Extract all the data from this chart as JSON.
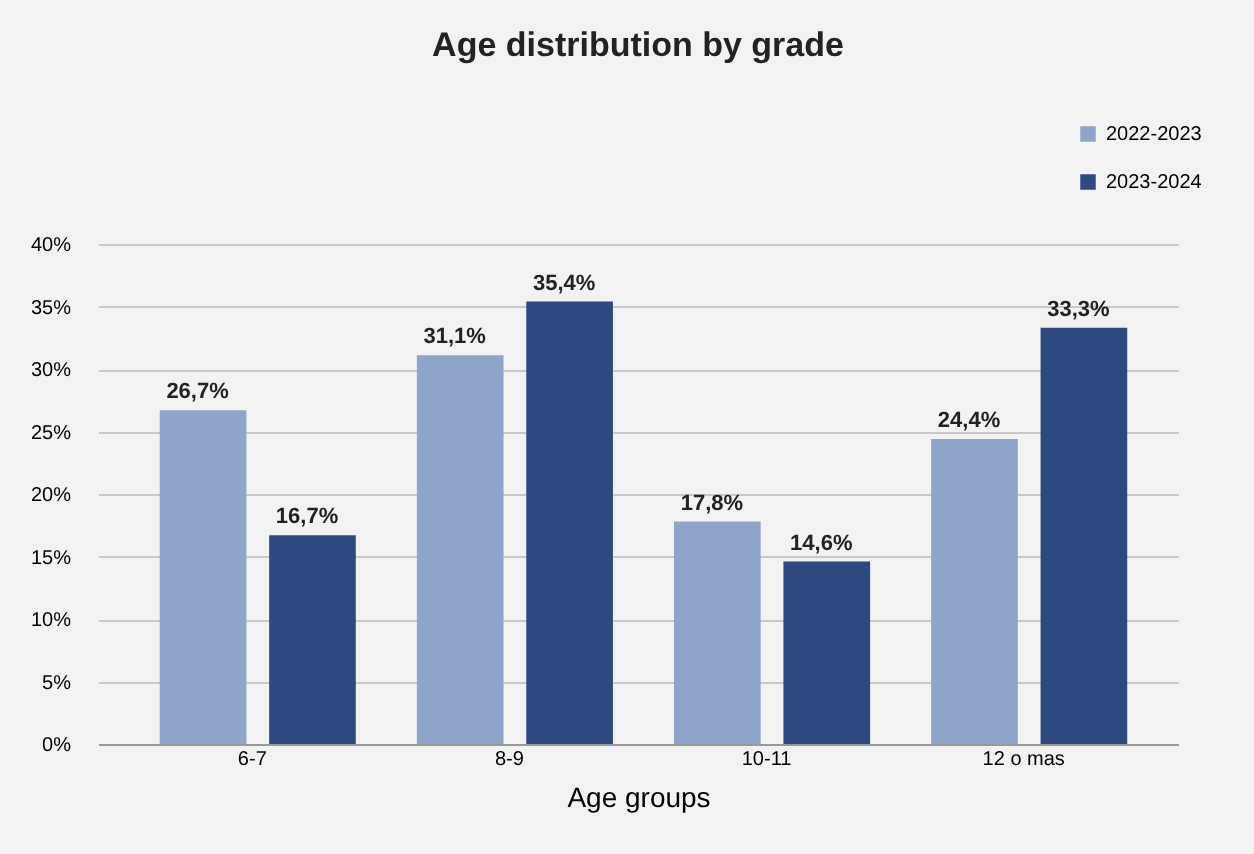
{
  "chart_data": {
    "type": "bar",
    "title": "Age distribution by grade",
    "xlabel": "Age groups",
    "categories": [
      "6-7",
      "8-9",
      "10-11",
      "12 o mas"
    ],
    "series": [
      {
        "name": "2022-2023",
        "color": "#8ea5c9",
        "values": [
          26.7,
          31.1,
          17.8,
          24.4
        ],
        "value_labels": [
          "26,7%",
          "31,1%",
          "17,8%",
          "24,4%"
        ]
      },
      {
        "name": "2023-2024",
        "color": "#2c4a7e",
        "values": [
          16.7,
          35.4,
          14.6,
          33.3
        ],
        "value_labels": [
          "16,7%",
          "35,4%",
          "14,6%",
          "33,3%"
        ]
      }
    ],
    "ylim": [
      0,
      40
    ],
    "yticks": [
      {
        "value": 0,
        "label": "0%"
      },
      {
        "value": 5,
        "label": "5%"
      },
      {
        "value": 10,
        "label": "10%"
      },
      {
        "value": 15,
        "label": "15%"
      },
      {
        "value": 20,
        "label": "20%"
      },
      {
        "value": 25,
        "label": "25%"
      },
      {
        "value": 30,
        "label": "30%"
      },
      {
        "value": 35,
        "label": "35%"
      },
      {
        "value": 40,
        "label": "40%"
      }
    ],
    "grid": "y",
    "legend": "top right"
  }
}
